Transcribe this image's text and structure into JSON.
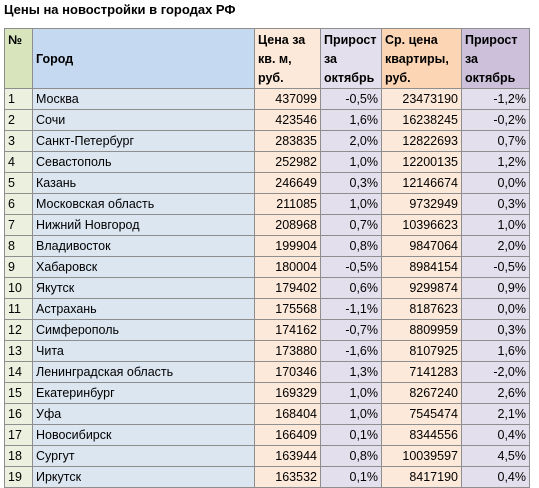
{
  "title": "Цены на новостройки в городах РФ",
  "colors": {
    "num_header": "#d7e4bc",
    "num_cell": "#ebf1de",
    "city_header": "#c5d9f1",
    "city_cell": "#dce6f1",
    "price_cell": "#fde9d9",
    "growth_cell": "#e4dfec",
    "avg_header": "#fcd5b4",
    "growth2_header": "#ccc0da"
  },
  "headers": {
    "num": "№",
    "city": "Город",
    "price_lines": [
      "Цена за",
      "кв. м,",
      "руб."
    ],
    "growth_price_lines": [
      "Прирост",
      "за",
      "октябрь"
    ],
    "avg_lines": [
      "Ср. цена",
      "квартиры,",
      "руб."
    ],
    "growth_avg_lines": [
      "Прирост",
      "за",
      "октябрь"
    ]
  },
  "rows": [
    {
      "num": "1",
      "city": "Москва",
      "price": "437099",
      "growth_price": "-0,5%",
      "avg": "23473190",
      "growth_avg": "-1,2%"
    },
    {
      "num": "2",
      "city": "Сочи",
      "price": "423546",
      "growth_price": "1,6%",
      "avg": "16238245",
      "growth_avg": "-0,2%"
    },
    {
      "num": "3",
      "city": "Санкт-Петербург",
      "price": "283835",
      "growth_price": "2,0%",
      "avg": "12822693",
      "growth_avg": "0,7%"
    },
    {
      "num": "4",
      "city": "Севастополь",
      "price": "252982",
      "growth_price": "1,0%",
      "avg": "12200135",
      "growth_avg": "1,2%"
    },
    {
      "num": "5",
      "city": "Казань",
      "price": "246649",
      "growth_price": "0,3%",
      "avg": "12146674",
      "growth_avg": "0,0%"
    },
    {
      "num": "6",
      "city": "Московская область",
      "price": "211085",
      "growth_price": "1,0%",
      "avg": "9732949",
      "growth_avg": "0,3%"
    },
    {
      "num": "7",
      "city": "Нижний Новгород",
      "price": "208968",
      "growth_price": "0,7%",
      "avg": "10396623",
      "growth_avg": "1,0%"
    },
    {
      "num": "8",
      "city": "Владивосток",
      "price": "199904",
      "growth_price": "0,8%",
      "avg": "9847064",
      "growth_avg": "2,0%"
    },
    {
      "num": "9",
      "city": "Хабаровск",
      "price": "180004",
      "growth_price": "-0,5%",
      "avg": "8984154",
      "growth_avg": "-0,5%"
    },
    {
      "num": "10",
      "city": "Якутск",
      "price": "179402",
      "growth_price": "0,6%",
      "avg": "9299874",
      "growth_avg": "0,9%"
    },
    {
      "num": "11",
      "city": "Астрахань",
      "price": "175568",
      "growth_price": "-1,1%",
      "avg": "8187623",
      "growth_avg": "0,0%"
    },
    {
      "num": "12",
      "city": "Симферополь",
      "price": "174162",
      "growth_price": "-0,7%",
      "avg": "8809959",
      "growth_avg": "0,3%"
    },
    {
      "num": "13",
      "city": "Чита",
      "price": "173880",
      "growth_price": "-1,6%",
      "avg": "8107925",
      "growth_avg": "1,6%"
    },
    {
      "num": "14",
      "city": "Ленинградская область",
      "price": "170346",
      "growth_price": "1,3%",
      "avg": "7141283",
      "growth_avg": "-2,0%"
    },
    {
      "num": "15",
      "city": "Екатеринбург",
      "price": "169329",
      "growth_price": "1,0%",
      "avg": "8267240",
      "growth_avg": "2,6%"
    },
    {
      "num": "16",
      "city": "Уфа",
      "price": "168404",
      "growth_price": "1,0%",
      "avg": "7545474",
      "growth_avg": "2,1%"
    },
    {
      "num": "17",
      "city": "Новосибирск",
      "price": "166409",
      "growth_price": "0,1%",
      "avg": "8344556",
      "growth_avg": "0,4%"
    },
    {
      "num": "18",
      "city": "Сургут",
      "price": "163944",
      "growth_price": "0,8%",
      "avg": "10039597",
      "growth_avg": "4,5%"
    },
    {
      "num": "19",
      "city": "Иркутск",
      "price": "163532",
      "growth_price": "0,1%",
      "avg": "8417190",
      "growth_avg": "0,4%"
    }
  ]
}
